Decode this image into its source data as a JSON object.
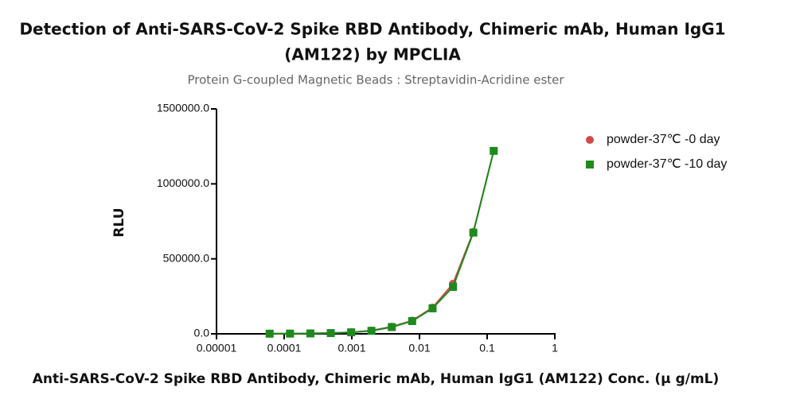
{
  "chart_data": {
    "type": "line",
    "title": [
      "Detection of Anti-SARS-CoV-2 Spike RBD Antibody, Chimeric mAb, Human IgG1",
      "(AM122) by MPCLIA"
    ],
    "subtitle": "Protein G-coupled Magnetic Beads : Streptavidin-Acridine ester",
    "x_label": "Anti-SARS-CoV-2 Spike RBD Antibody, Chimeric mAb, Human IgG1 (AM122) Conc. (μ g/mL)",
    "y_label": "RLU",
    "x_scale": "log",
    "xlim": [
      1e-05,
      1
    ],
    "xticks": [
      {
        "value": 1e-05,
        "label": "0.00001"
      },
      0.0001,
      0.001,
      0.01,
      0.1,
      1
    ],
    "ylim": [
      0,
      1500000
    ],
    "yticks": [
      {
        "value": 0,
        "label": "0.0"
      },
      {
        "value": 500000,
        "label": "500000.0"
      },
      {
        "value": 1000000,
        "label": "1000000.0"
      },
      {
        "value": 1500000,
        "label": "1500000.0"
      }
    ],
    "x": [
      6.1e-05,
      0.000122,
      0.000244,
      0.000488,
      0.000977,
      0.00195,
      0.0039,
      0.0078,
      0.0156,
      0.03125,
      0.0625,
      0.125
    ],
    "series": [
      {
        "name": "powder-37℃ -0 day",
        "color": "#d24a4a",
        "marker": "circle",
        "values": [
          1000,
          1500,
          2500,
          5000,
          10000,
          22000,
          48000,
          88000,
          175000,
          334000,
          680000,
          1220000
        ]
      },
      {
        "name": "powder-37℃ -10 day",
        "color": "#1e8a1e",
        "marker": "square",
        "values": [
          1000,
          1500,
          2500,
          5000,
          10000,
          20000,
          45000,
          85000,
          170000,
          313000,
          675000,
          1220000
        ]
      }
    ],
    "legend": "top-right"
  }
}
